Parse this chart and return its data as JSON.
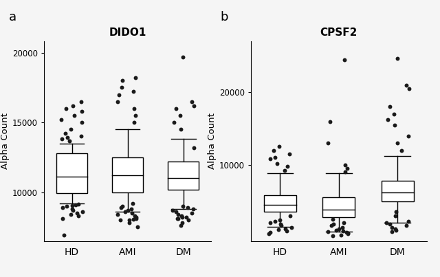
{
  "panel_a_title": "DIDO1",
  "panel_b_title": "CPSF2",
  "ylabel": "Alpha Count",
  "categories": [
    "HD",
    "AMI",
    "DM"
  ],
  "panel_a": {
    "HD": {
      "q1": 9950,
      "median": 11100,
      "q3": 12800,
      "whisker_low": 9200,
      "whisker_high": 13500,
      "points": [
        8100,
        8300,
        8400,
        8500,
        8600,
        8700,
        8800,
        8900,
        9000,
        9050,
        9100,
        9150,
        13700,
        13800,
        13900,
        14000,
        14200,
        14500,
        15000,
        15200,
        15500,
        15800,
        16000,
        16200,
        16500,
        6900
      ]
    },
    "AMI": {
      "q1": 10000,
      "median": 11200,
      "q3": 12500,
      "whisker_low": 8600,
      "whisker_high": 14500,
      "points": [
        8000,
        8100,
        8200,
        8300,
        8400,
        8500,
        8600,
        8700,
        8800,
        8900,
        9000,
        9200,
        15000,
        15500,
        16000,
        16500,
        17000,
        17200,
        17500,
        18000,
        18200,
        7500,
        7800,
        8000,
        8050
      ]
    },
    "DM": {
      "q1": 10200,
      "median": 11000,
      "q3": 12200,
      "whisker_low": 8800,
      "whisker_high": 13800,
      "points": [
        8100,
        8200,
        8300,
        8400,
        8500,
        8600,
        8700,
        8800,
        8900,
        9000,
        13200,
        14500,
        15000,
        15500,
        16000,
        16200,
        16500,
        19700,
        7600,
        7800,
        8000,
        8100,
        8200
      ]
    }
  },
  "panel_b": {
    "HD": {
      "q1": 3500,
      "median": 4500,
      "q3": 5800,
      "whisker_low": 1500,
      "whisker_high": 8800,
      "points": [
        700,
        900,
        1100,
        1200,
        1400,
        1600,
        1800,
        2000,
        2200,
        2400,
        9200,
        9800,
        10200,
        10800,
        11000,
        11500,
        12000,
        12500,
        3000,
        500
      ]
    },
    "AMI": {
      "q1": 2800,
      "median": 3800,
      "q3": 5500,
      "whisker_low": 800,
      "whisker_high": 8800,
      "points": [
        300,
        500,
        600,
        700,
        800,
        900,
        1000,
        1200,
        1400,
        1600,
        1800,
        2000,
        9000,
        9500,
        10000,
        13000,
        16000,
        24500,
        2500,
        200
      ]
    },
    "DM": {
      "q1": 5000,
      "median": 6200,
      "q3": 7800,
      "whisker_low": 2000,
      "whisker_high": 11200,
      "points": [
        800,
        1000,
        1200,
        1400,
        1600,
        1800,
        2000,
        2200,
        12000,
        13000,
        14000,
        15500,
        16200,
        17000,
        18000,
        20500,
        21000,
        24700,
        3000,
        3500
      ]
    }
  },
  "ylim_a": [
    6500,
    20800
  ],
  "yticks_a": [
    10000,
    15000,
    20000
  ],
  "ylim_b": [
    -500,
    27000
  ],
  "yticks_b": [
    10000,
    20000
  ],
  "box_color": "#ffffff",
  "box_edgecolor": "#000000",
  "dot_color": "#1a1a1a",
  "dot_size": 18,
  "linewidth": 1.0,
  "background_color": "#f5f5f5"
}
